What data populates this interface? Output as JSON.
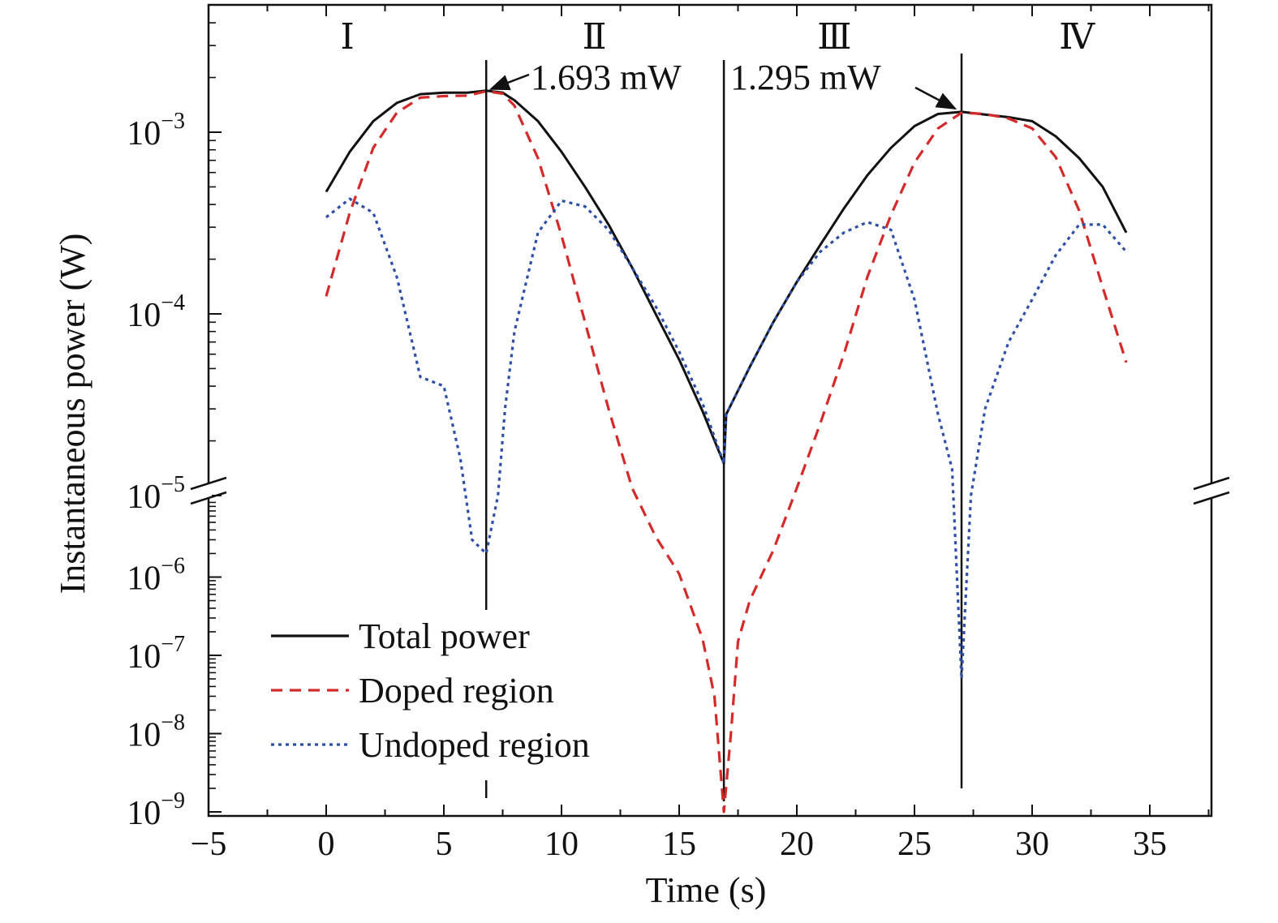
{
  "chart_data": {
    "type": "line",
    "title": "",
    "xlabel": "Time (s)",
    "ylabel": "Instantaneous power (W)",
    "xlim": [
      -5,
      37.5
    ],
    "x_ticks": [
      -5,
      0,
      5,
      10,
      15,
      20,
      25,
      30,
      35
    ],
    "x_tick_labels": [
      "−5",
      "0",
      "5",
      "10",
      "15",
      "20",
      "25",
      "30",
      "35"
    ],
    "y_scale": "log (broken axis: upper segment 1.5e-5 to 5e-3, lower segment 1e-9 to 1e-5)",
    "y_tick_values": [
      1e-09,
      1e-08,
      1e-07,
      1e-06,
      1e-05,
      0.0001,
      0.001
    ],
    "y_tick_labels": [
      {
        "base": "10",
        "exp": "−9"
      },
      {
        "base": "10",
        "exp": "−8"
      },
      {
        "base": "10",
        "exp": "−7"
      },
      {
        "base": "10",
        "exp": "−6"
      },
      {
        "base": "10",
        "exp": "−5"
      },
      {
        "base": "10",
        "exp": "−4"
      },
      {
        "base": "10",
        "exp": "−3"
      }
    ],
    "grid": false,
    "legend_position": "bottom-left",
    "regions": [
      {
        "label": "Ⅰ",
        "x": 0.9
      },
      {
        "label": "Ⅱ",
        "x": 11.4
      },
      {
        "label": "Ⅲ",
        "x": 21.6
      },
      {
        "label": "Ⅳ",
        "x": 31.9
      }
    ],
    "vertical_lines": [
      6.8,
      16.9,
      27.0
    ],
    "annotations": [
      {
        "text": "1.693 mW",
        "x": 6.8,
        "y": 0.001693
      },
      {
        "text": "1.295 mW",
        "x": 27.0,
        "y": 0.001295
      }
    ],
    "series": [
      {
        "name": "Total power",
        "color": "#111111",
        "style": "solid",
        "points": [
          [
            0,
            0.00047
          ],
          [
            1,
            0.00078
          ],
          [
            2,
            0.00115
          ],
          [
            3,
            0.00145
          ],
          [
            4,
            0.00162
          ],
          [
            5,
            0.00165
          ],
          [
            6,
            0.00165
          ],
          [
            6.8,
            0.001693
          ],
          [
            7.5,
            0.00165
          ],
          [
            8,
            0.0015
          ],
          [
            9,
            0.00115
          ],
          [
            10,
            0.00078
          ],
          [
            11,
            0.0005
          ],
          [
            12,
            0.00031
          ],
          [
            13,
            0.00018
          ],
          [
            14,
            0.0001
          ],
          [
            15,
            5.6e-05
          ],
          [
            16,
            2.9e-05
          ],
          [
            16.9,
            1.5e-05
          ],
          [
            17,
            2.8e-05
          ],
          [
            18,
            5.1e-05
          ],
          [
            19,
            9e-05
          ],
          [
            20,
            0.00015
          ],
          [
            21,
            0.00024
          ],
          [
            22,
            0.00038
          ],
          [
            23,
            0.00058
          ],
          [
            24,
            0.00082
          ],
          [
            25,
            0.00108
          ],
          [
            26,
            0.00126
          ],
          [
            27,
            0.001295
          ],
          [
            28,
            0.00125
          ],
          [
            29,
            0.00121
          ],
          [
            30,
            0.00115
          ],
          [
            31,
            0.00095
          ],
          [
            32,
            0.00072
          ],
          [
            33,
            0.0005
          ],
          [
            34,
            0.00028
          ]
        ]
      },
      {
        "name": "Doped region",
        "color": "#d42a2a",
        "style": "dashed",
        "points": [
          [
            0,
            0.000125
          ],
          [
            1,
            0.00036
          ],
          [
            2,
            0.00082
          ],
          [
            3,
            0.00128
          ],
          [
            4,
            0.00155
          ],
          [
            5,
            0.00158
          ],
          [
            6,
            0.00159
          ],
          [
            6.8,
            0.00168
          ],
          [
            7.5,
            0.00163
          ],
          [
            8,
            0.0014
          ],
          [
            9,
            0.00072
          ],
          [
            10,
            0.00027
          ],
          [
            11,
            9e-05
          ],
          [
            12,
            3e-05
          ],
          [
            13,
            1.1e-05
          ],
          [
            14,
            3.3e-06
          ],
          [
            15,
            1.1e-06
          ],
          [
            16,
            1.6e-07
          ],
          [
            16.5,
            3e-08
          ],
          [
            16.9,
            1e-09
          ],
          [
            17.2,
            1e-08
          ],
          [
            17.5,
            1.5e-07
          ],
          [
            18,
            5e-07
          ],
          [
            19,
            2.2e-06
          ],
          [
            20,
            1.1e-05
          ],
          [
            21,
            2.5e-05
          ],
          [
            22,
            6e-05
          ],
          [
            23,
            0.00016
          ],
          [
            24,
            0.00035
          ],
          [
            25,
            0.00068
          ],
          [
            26,
            0.00105
          ],
          [
            27,
            0.00128
          ],
          [
            28,
            0.00126
          ],
          [
            29,
            0.00119
          ],
          [
            30,
            0.00105
          ],
          [
            31,
            0.00073
          ],
          [
            32,
            0.00037
          ],
          [
            33,
            0.00014
          ],
          [
            34,
            5.4e-05
          ]
        ]
      },
      {
        "name": "Undoped region",
        "color": "#2e4fa6",
        "style": "dotted",
        "points": [
          [
            0,
            0.00034
          ],
          [
            1,
            0.00043
          ],
          [
            2,
            0.00036
          ],
          [
            3,
            0.00016
          ],
          [
            4,
            4.5e-05
          ],
          [
            5,
            4e-05
          ],
          [
            5.7,
            1.6e-05
          ],
          [
            6.2,
            3e-06
          ],
          [
            6.8,
            2e-06
          ],
          [
            7.3,
            1e-05
          ],
          [
            7.6,
            3e-05
          ],
          [
            8,
            8e-05
          ],
          [
            9,
            0.00028
          ],
          [
            10,
            0.00042
          ],
          [
            11,
            0.00039
          ],
          [
            12,
            0.00029
          ],
          [
            13,
            0.00018
          ],
          [
            14,
            0.00011
          ],
          [
            15,
            6.2e-05
          ],
          [
            16,
            3.2e-05
          ],
          [
            16.9,
            1.5e-05
          ],
          [
            17,
            2.8e-05
          ],
          [
            18,
            5.1e-05
          ],
          [
            19,
            9e-05
          ],
          [
            20,
            0.00015
          ],
          [
            21,
            0.00022
          ],
          [
            22,
            0.00028
          ],
          [
            23,
            0.00032
          ],
          [
            24,
            0.00029
          ],
          [
            25,
            0.00012
          ],
          [
            26,
            2.8e-05
          ],
          [
            26.6,
            1.4e-05
          ],
          [
            27,
            5e-08
          ],
          [
            27.4,
            1e-05
          ],
          [
            28,
            3e-05
          ],
          [
            29,
            7e-05
          ],
          [
            30,
            0.00012
          ],
          [
            31,
            0.00021
          ],
          [
            32,
            0.00031
          ],
          [
            33,
            0.00031
          ],
          [
            34,
            0.00022
          ]
        ]
      }
    ],
    "legend": [
      {
        "label": "Total power",
        "style": "solid",
        "color": "#111111"
      },
      {
        "label": "Doped region",
        "style": "dashed",
        "color": "#d42a2a"
      },
      {
        "label": "Undoped region",
        "style": "dotted",
        "color": "#2e4fa6"
      }
    ]
  }
}
